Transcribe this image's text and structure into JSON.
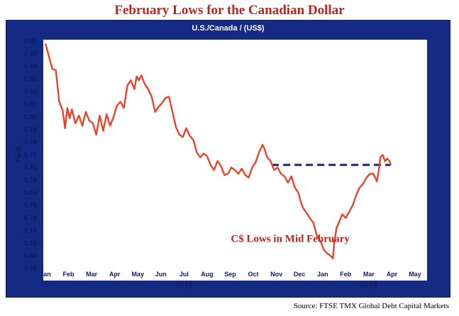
{
  "chart_data": {
    "type": "line",
    "title": "February Lows for the Canadian Dollar",
    "subtitle": "U.S./Canada / (US$)",
    "ylabel": "Yield",
    "xlabel": "",
    "ylim": [
      0.68,
      0.86
    ],
    "yticks": [
      "0.86",
      "0.85",
      "0.84",
      "0.83",
      "0.82",
      "0.81",
      "0.80",
      "0.79",
      "0.78",
      "0.77",
      "0.76",
      "0.75",
      "0.74",
      "0.73",
      "0.72",
      "0.71",
      "0.70",
      "0.69",
      "0.68"
    ],
    "x_months": [
      "Jan",
      "Feb",
      "Mar",
      "Apr",
      "May",
      "Jun",
      "Jul",
      "Aug",
      "Sep",
      "Oct",
      "Nov",
      "Dec",
      "Jan",
      "Feb",
      "Mar",
      "Apr",
      "May"
    ],
    "x_years": [
      {
        "label": "2015",
        "month_index": 6
      },
      {
        "label": "2016",
        "month_index": 14
      }
    ],
    "grid": false,
    "series": [
      {
        "color": "#e8442b",
        "x": [
          0,
          0.05,
          0.15,
          0.3,
          0.45,
          0.6,
          0.75,
          0.85,
          0.95,
          1.05,
          1.15,
          1.3,
          1.45,
          1.6,
          1.75,
          1.9,
          2.05,
          2.2,
          2.35,
          2.5,
          2.65,
          2.8,
          2.95,
          3.1,
          3.25,
          3.4,
          3.55,
          3.7,
          3.85,
          3.95,
          4.05,
          4.15,
          4.3,
          4.45,
          4.6,
          4.75,
          4.9,
          5.05,
          5.2,
          5.35,
          5.5,
          5.65,
          5.8,
          5.95,
          6.1,
          6.25,
          6.4,
          6.55,
          6.7,
          6.85,
          7.0,
          7.15,
          7.3,
          7.45,
          7.6,
          7.75,
          7.9,
          8.05,
          8.2,
          8.35,
          8.5,
          8.65,
          8.8,
          8.95,
          9.1,
          9.25,
          9.4,
          9.5,
          9.6,
          9.75,
          9.9,
          10.05,
          10.2,
          10.35,
          10.5,
          10.65,
          10.8,
          10.95,
          11.05,
          11.15,
          11.3,
          11.45,
          11.6,
          11.75,
          11.9,
          12.05,
          12.2,
          12.35,
          12.45,
          12.5,
          12.55,
          12.6,
          12.7,
          12.85,
          13.0,
          13.15,
          13.3,
          13.45,
          13.6,
          13.75,
          13.9,
          14.05,
          14.2,
          14.35,
          14.45,
          14.5,
          14.6,
          14.7,
          14.8,
          14.9,
          14.95
        ],
        "values": [
          0.858,
          0.855,
          0.848,
          0.838,
          0.837,
          0.812,
          0.805,
          0.791,
          0.807,
          0.799,
          0.806,
          0.795,
          0.801,
          0.793,
          0.804,
          0.797,
          0.795,
          0.786,
          0.801,
          0.789,
          0.802,
          0.793,
          0.8,
          0.809,
          0.812,
          0.807,
          0.825,
          0.829,
          0.822,
          0.832,
          0.829,
          0.833,
          0.826,
          0.822,
          0.816,
          0.804,
          0.808,
          0.811,
          0.815,
          0.816,
          0.804,
          0.792,
          0.786,
          0.784,
          0.791,
          0.785,
          0.782,
          0.772,
          0.768,
          0.771,
          0.769,
          0.762,
          0.758,
          0.765,
          0.761,
          0.754,
          0.755,
          0.76,
          0.758,
          0.755,
          0.759,
          0.754,
          0.752,
          0.76,
          0.764,
          0.772,
          0.778,
          0.774,
          0.768,
          0.765,
          0.758,
          0.76,
          0.755,
          0.753,
          0.748,
          0.753,
          0.744,
          0.74,
          0.733,
          0.728,
          0.724,
          0.72,
          0.716,
          0.706,
          0.702,
          0.695,
          0.692,
          0.69,
          0.688,
          0.7,
          0.706,
          0.712,
          0.716,
          0.723,
          0.72,
          0.725,
          0.73,
          0.738,
          0.744,
          0.747,
          0.752,
          0.755,
          0.755,
          0.749,
          0.76,
          0.768,
          0.77,
          0.765,
          0.767,
          0.765,
          0.762
        ]
      }
    ],
    "reference_line": {
      "value": 0.762,
      "x_start": 9.8,
      "x_end": 14.95,
      "color": "#1a237e",
      "style": "dashed"
    },
    "annotations": [
      {
        "text": "C$ Lows in Mid February",
        "x_month": 10.6,
        "y": 0.701
      }
    ]
  },
  "source": "Source: FTSE TMX Global Debt Capital Markets",
  "colors": {
    "frame": "#142a83",
    "title": "#c0231a",
    "line": "#e8442b",
    "text": "#0e1b66"
  }
}
